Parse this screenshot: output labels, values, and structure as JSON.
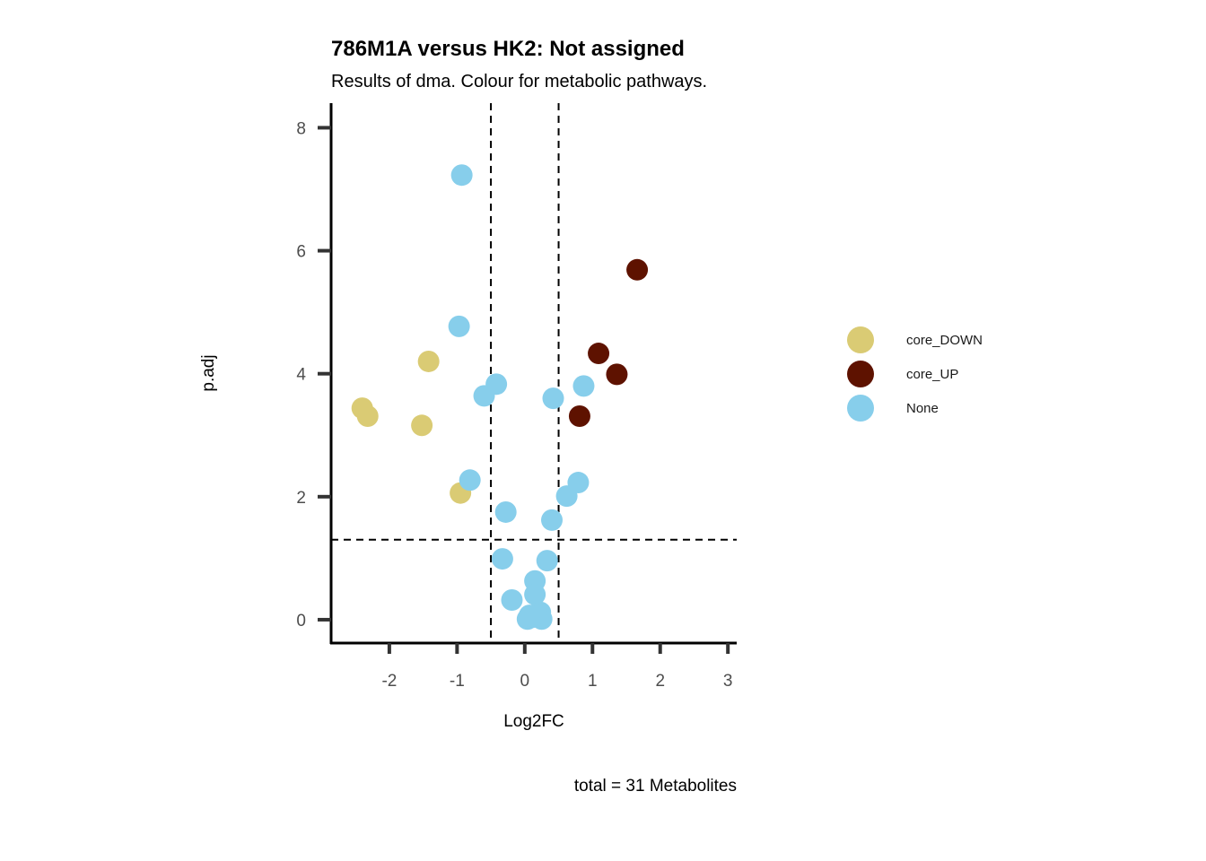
{
  "chart_data": {
    "type": "scatter",
    "title": "786M1A versus HK2: Not assigned",
    "subtitle": "Results of dma. Colour for metabolic pathways.",
    "xlabel": "Log2FC",
    "ylabel": "p.adj",
    "caption": "total = 31 Metabolites",
    "xlim": [
      -2.86,
      3.13
    ],
    "ylim": [
      -0.38,
      8.4
    ],
    "xticks": [
      -2,
      -1,
      0,
      1,
      2,
      3
    ],
    "yticks": [
      0,
      2,
      4,
      6,
      8
    ],
    "thresholds": {
      "x": [
        -0.5,
        0.5
      ],
      "y": 1.3
    },
    "grid": false,
    "legend_position": "right",
    "series": [
      {
        "name": "core_DOWN",
        "color": "#DACB74",
        "points": [
          [
            -2.4,
            3.44
          ],
          [
            -2.32,
            3.31
          ],
          [
            -1.42,
            4.2
          ],
          [
            -1.52,
            3.16
          ],
          [
            -0.95,
            2.06
          ]
        ]
      },
      {
        "name": "core_UP",
        "color": "#5E1200",
        "points": [
          [
            1.66,
            5.69
          ],
          [
            1.09,
            4.33
          ],
          [
            1.36,
            3.99
          ],
          [
            0.81,
            3.31
          ]
        ]
      },
      {
        "name": "None",
        "color": "#87CEEB",
        "points": [
          [
            -0.93,
            7.23
          ],
          [
            -0.97,
            4.77
          ],
          [
            -0.42,
            3.83
          ],
          [
            -0.6,
            3.64
          ],
          [
            0.42,
            3.6
          ],
          [
            0.87,
            3.8
          ],
          [
            -0.81,
            2.27
          ],
          [
            -0.28,
            1.75
          ],
          [
            0.62,
            2.01
          ],
          [
            0.79,
            2.23
          ],
          [
            0.4,
            1.62
          ],
          [
            -0.33,
            0.99
          ],
          [
            0.33,
            0.96
          ],
          [
            0.15,
            0.63
          ],
          [
            0.15,
            0.41
          ],
          [
            -0.19,
            0.32
          ],
          [
            0.23,
            0.12
          ],
          [
            0.04,
            0.01
          ],
          [
            0.25,
            0.01
          ],
          [
            0.12,
            0.04
          ],
          [
            0.17,
            0.09
          ],
          [
            0.07,
            0.07
          ]
        ]
      }
    ]
  }
}
